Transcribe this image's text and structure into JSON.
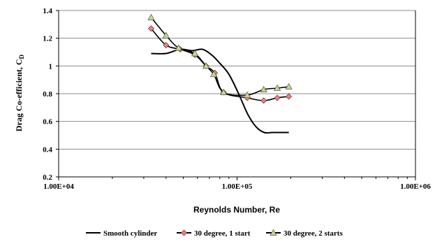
{
  "chart_data": {
    "type": "line",
    "xlabel": "Reynolds Number, Re",
    "ylabel": "Drag Co-efficient, C",
    "ylabel_subscript": "D",
    "x_scale": "log",
    "xlim": [
      10000,
      1000000
    ],
    "ylim": [
      0.2,
      1.4
    ],
    "x_ticks": [
      10000,
      100000,
      1000000
    ],
    "x_tick_labels": [
      "1.00E+04",
      "1.00E+05",
      "1.00E+06"
    ],
    "y_ticks": [
      0.2,
      0.4,
      0.6,
      0.8,
      1.0,
      1.2,
      1.4
    ],
    "y_tick_labels": [
      "0.2",
      "0.4",
      "0.6",
      "0.8",
      "1",
      "1.2",
      "1.4"
    ],
    "grid": "horizontal",
    "legend_position": "bottom",
    "series": [
      {
        "name": "Smooth cylinder",
        "color": "#000000",
        "marker": "none",
        "smooth": true,
        "x": [
          33000,
          40000,
          48000,
          56000,
          64000,
          72000,
          80000,
          90000,
          102000,
          115000,
          128000,
          142000,
          157000,
          172000,
          195000
        ],
        "y": [
          1.09,
          1.09,
          1.12,
          1.11,
          1.12,
          1.08,
          1.02,
          0.94,
          0.8,
          0.65,
          0.56,
          0.52,
          0.52,
          0.52,
          0.52
        ]
      },
      {
        "name": "30 degree, 1 start",
        "color": "#f08080",
        "marker": "diamond",
        "x": [
          33000,
          40000,
          48000,
          58000,
          67000,
          75000,
          84000,
          114000,
          141000,
          168000,
          195000
        ],
        "y": [
          1.27,
          1.15,
          1.12,
          1.08,
          1.0,
          0.95,
          0.81,
          0.77,
          0.75,
          0.77,
          0.78
        ]
      },
      {
        "name": "30 degree, 2 starts",
        "color": "#c4d79b",
        "marker": "triangle",
        "x": [
          33000,
          40000,
          47000,
          58000,
          67000,
          74000,
          84000,
          114000,
          141000,
          168000,
          195000
        ],
        "y": [
          1.35,
          1.22,
          1.13,
          1.09,
          1.0,
          0.94,
          0.81,
          0.79,
          0.83,
          0.84,
          0.85
        ]
      }
    ]
  }
}
